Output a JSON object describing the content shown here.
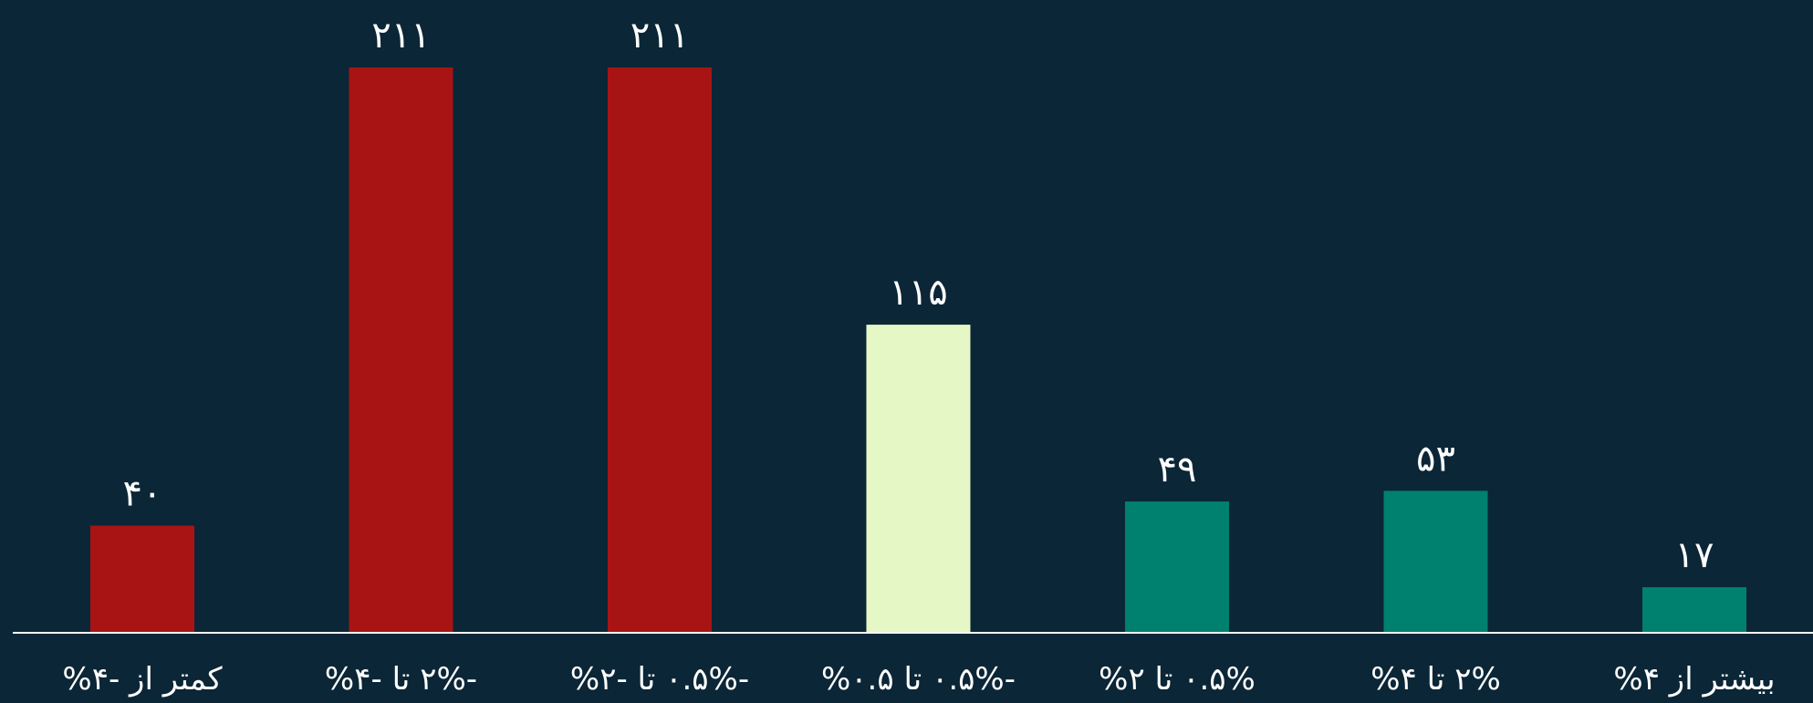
{
  "chart_data": {
    "type": "bar",
    "categories": [
      "کمتر از -۴%",
      "-۲% تا -۴%",
      "-۰.۵% تا -۲%",
      "-۰.۵% تا ۰.۵%",
      "۰.۵% تا ۲%",
      "۲% تا ۴%",
      "بیشتر از ۴%"
    ],
    "values": [
      40,
      211,
      211,
      115,
      49,
      53,
      17
    ],
    "value_labels": [
      "۴۰",
      "۲۱۱",
      "۲۱۱",
      "۱۱۵",
      "۴۹",
      "۵۳",
      "۱۷"
    ],
    "ylim": [
      0,
      211
    ],
    "grid": false,
    "legend": "none",
    "colors": {
      "background": "#0b2636",
      "decline": "#a81414",
      "neutral": "#e6f7c6",
      "advance": "#00806f",
      "axis": "#ffffff",
      "text": "#ffffff"
    },
    "bar_color_keys": [
      "decline",
      "decline",
      "decline",
      "neutral",
      "advance",
      "advance",
      "advance"
    ]
  }
}
